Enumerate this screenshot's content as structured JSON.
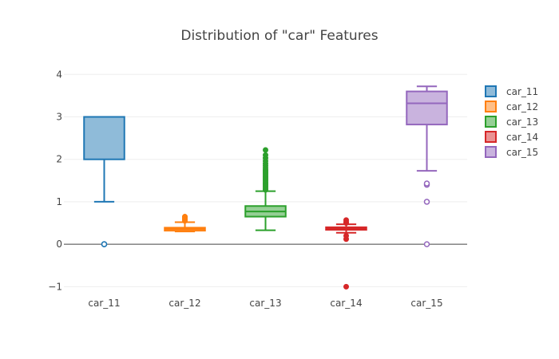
{
  "chart_data": {
    "type": "box",
    "title": "Distribution of \"car\" Features",
    "xlabel": "",
    "ylabel": "",
    "ylim": [
      -1.2,
      4.25
    ],
    "yticks": [
      -1,
      0,
      1,
      2,
      3,
      4
    ],
    "ytick_labels": [
      "−1",
      "0",
      "1",
      "2",
      "3",
      "4"
    ],
    "grid": true,
    "legend_position": "top-right",
    "series": [
      {
        "name": "car_11",
        "color": "#1f77b4",
        "fill": "#8fbbd9",
        "q1": 2,
        "median": 3,
        "q3": 3,
        "lower_fence": 1,
        "upper_fence": 3,
        "outliers": [
          0,
          0,
          0
        ],
        "outlier_style": "hollow"
      },
      {
        "name": "car_12",
        "color": "#ff7f0e",
        "fill": "#ffbf87",
        "q1": 0.32,
        "median": 0.36,
        "q3": 0.39,
        "lower_fence": 0.3,
        "upper_fence": 0.52,
        "outliers": [
          0.55,
          0.58,
          0.6,
          0.63,
          0.65
        ],
        "outlier_style": "solid"
      },
      {
        "name": "car_13",
        "color": "#2ca02c",
        "fill": "#95cf95",
        "q1": 0.65,
        "median": 0.77,
        "q3": 0.9,
        "lower_fence": 0.33,
        "upper_fence": 1.25,
        "outliers": [
          1.28,
          1.31,
          1.34,
          1.37,
          1.4,
          1.43,
          1.46,
          1.49,
          1.52,
          1.55,
          1.58,
          1.61,
          1.64,
          1.67,
          1.7,
          1.73,
          1.76,
          1.8,
          1.85,
          1.9,
          1.96,
          2.03,
          2.1,
          2.22
        ],
        "outlier_style": "solid"
      },
      {
        "name": "car_14",
        "color": "#d62728",
        "fill": "#ea9293",
        "q1": 0.34,
        "median": 0.37,
        "q3": 0.4,
        "lower_fence": 0.27,
        "upper_fence": 0.47,
        "outliers": [
          -1,
          0.12,
          0.2,
          0.5,
          0.53,
          0.57
        ],
        "outlier_style": "solid"
      },
      {
        "name": "car_15",
        "color": "#9467bd",
        "fill": "#c9b3de",
        "q1": 2.82,
        "median": 3.32,
        "q3": 3.6,
        "lower_fence": 1.73,
        "upper_fence": 3.72,
        "outliers": [
          0,
          1,
          1.4,
          1.43
        ],
        "outlier_style": "hollow"
      }
    ]
  }
}
